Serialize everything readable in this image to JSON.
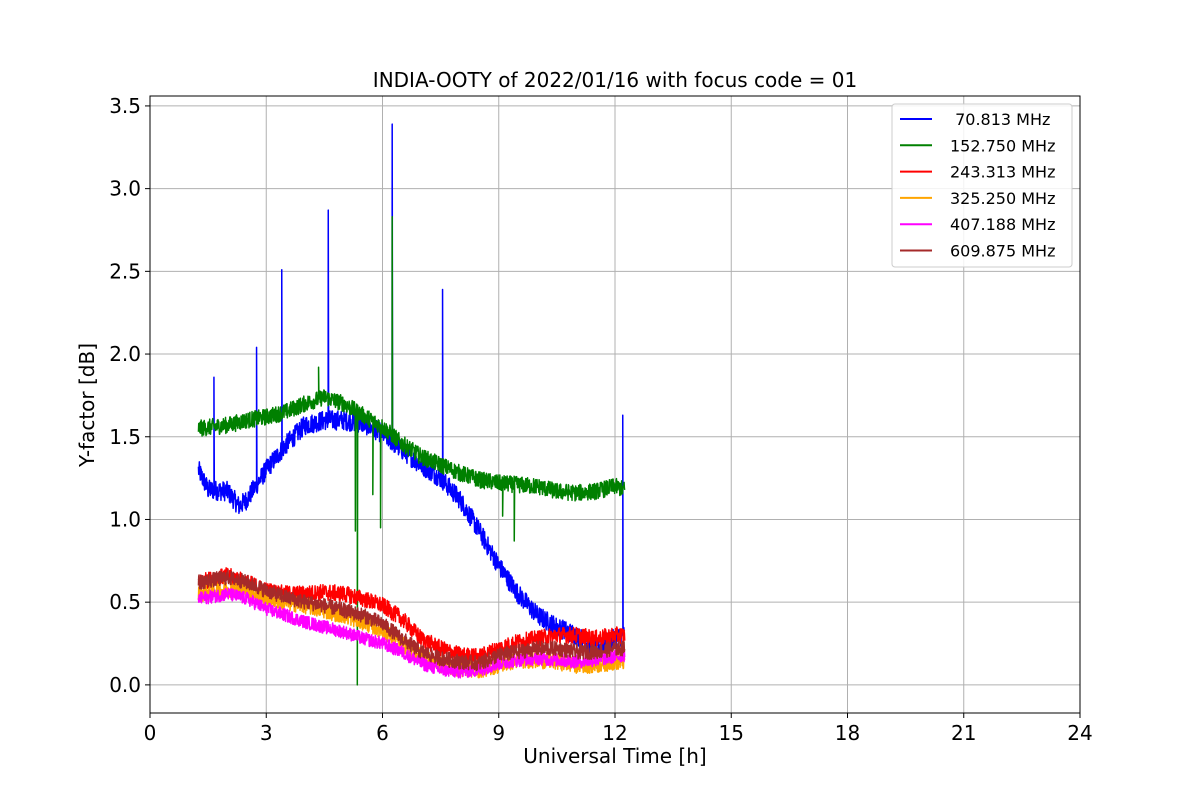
{
  "chart_data": {
    "type": "line",
    "title": "INDIA-OOTY of 2022/01/16 with focus code = 01",
    "xlabel": "Universal Time [h]",
    "ylabel": "Y-factor [dB]",
    "xlim": [
      0,
      24
    ],
    "ylim": [
      -0.17,
      3.56
    ],
    "xticks": [
      0,
      3,
      6,
      9,
      12,
      15,
      18,
      21,
      24
    ],
    "xtick_labels": [
      "0",
      "3",
      "6",
      "9",
      "12",
      "15",
      "18",
      "21",
      "24"
    ],
    "yticks": [
      0.0,
      0.5,
      1.0,
      1.5,
      2.0,
      2.5,
      3.0,
      3.5
    ],
    "ytick_labels": [
      "0.0",
      "0.5",
      "1.0",
      "1.5",
      "2.0",
      "2.5",
      "3.0",
      "3.5"
    ],
    "grid": true,
    "legend_position": "top-right",
    "series": [
      {
        "name": " 70.813 MHz",
        "color": "#0000ff",
        "noise": 0.06,
        "points": [
          [
            1.25,
            1.3
          ],
          [
            1.5,
            1.18
          ],
          [
            2.0,
            1.17
          ],
          [
            2.3,
            1.08
          ],
          [
            2.5,
            1.12
          ],
          [
            3.0,
            1.3
          ],
          [
            3.5,
            1.45
          ],
          [
            4.0,
            1.57
          ],
          [
            4.5,
            1.6
          ],
          [
            5.0,
            1.6
          ],
          [
            5.5,
            1.58
          ],
          [
            6.0,
            1.52
          ],
          [
            6.5,
            1.42
          ],
          [
            7.0,
            1.33
          ],
          [
            7.5,
            1.25
          ],
          [
            8.0,
            1.12
          ],
          [
            8.5,
            0.93
          ],
          [
            9.0,
            0.72
          ],
          [
            9.5,
            0.55
          ],
          [
            10.0,
            0.42
          ],
          [
            10.5,
            0.35
          ],
          [
            11.0,
            0.3
          ],
          [
            11.5,
            0.22
          ],
          [
            12.0,
            0.28
          ],
          [
            12.25,
            0.3
          ]
        ],
        "spikes": [
          [
            1.65,
            1.86
          ],
          [
            2.75,
            2.04
          ],
          [
            3.4,
            2.51
          ],
          [
            4.6,
            2.87
          ],
          [
            6.25,
            3.39
          ],
          [
            7.55,
            2.39
          ],
          [
            12.2,
            1.63
          ]
        ]
      },
      {
        "name": "152.750 MHz",
        "color": "#008000",
        "noise": 0.05,
        "points": [
          [
            1.25,
            1.55
          ],
          [
            2.0,
            1.57
          ],
          [
            2.5,
            1.6
          ],
          [
            3.0,
            1.62
          ],
          [
            3.5,
            1.65
          ],
          [
            4.0,
            1.7
          ],
          [
            4.5,
            1.74
          ],
          [
            5.0,
            1.7
          ],
          [
            5.5,
            1.63
          ],
          [
            6.0,
            1.56
          ],
          [
            6.5,
            1.46
          ],
          [
            7.0,
            1.38
          ],
          [
            7.5,
            1.33
          ],
          [
            8.0,
            1.28
          ],
          [
            8.5,
            1.24
          ],
          [
            9.0,
            1.22
          ],
          [
            9.5,
            1.21
          ],
          [
            10.0,
            1.2
          ],
          [
            10.5,
            1.17
          ],
          [
            11.0,
            1.16
          ],
          [
            11.5,
            1.17
          ],
          [
            12.0,
            1.2
          ],
          [
            12.25,
            1.18
          ]
        ],
        "spikes": [
          [
            4.35,
            1.92
          ],
          [
            6.25,
            2.83
          ]
        ],
        "dips": [
          [
            5.3,
            0.93
          ],
          [
            5.35,
            0.0
          ],
          [
            5.75,
            1.15
          ],
          [
            5.95,
            0.95
          ],
          [
            9.4,
            0.87
          ],
          [
            9.1,
            1.02
          ]
        ]
      },
      {
        "name": "243.313 MHz",
        "color": "#ff0000",
        "noise": 0.05,
        "points": [
          [
            1.25,
            0.62
          ],
          [
            2.0,
            0.66
          ],
          [
            2.5,
            0.62
          ],
          [
            3.0,
            0.57
          ],
          [
            3.5,
            0.55
          ],
          [
            4.0,
            0.55
          ],
          [
            4.5,
            0.56
          ],
          [
            5.0,
            0.55
          ],
          [
            5.5,
            0.52
          ],
          [
            6.0,
            0.48
          ],
          [
            6.5,
            0.4
          ],
          [
            7.0,
            0.28
          ],
          [
            7.5,
            0.22
          ],
          [
            8.0,
            0.18
          ],
          [
            8.5,
            0.17
          ],
          [
            9.0,
            0.22
          ],
          [
            9.5,
            0.26
          ],
          [
            10.0,
            0.28
          ],
          [
            10.5,
            0.3
          ],
          [
            11.0,
            0.3
          ],
          [
            11.5,
            0.28
          ],
          [
            12.0,
            0.3
          ],
          [
            12.25,
            0.3
          ]
        ]
      },
      {
        "name": "325.250 MHz",
        "color": "#ffa500",
        "noise": 0.05,
        "points": [
          [
            1.25,
            0.55
          ],
          [
            2.0,
            0.58
          ],
          [
            2.5,
            0.58
          ],
          [
            3.0,
            0.52
          ],
          [
            3.5,
            0.5
          ],
          [
            4.0,
            0.48
          ],
          [
            4.5,
            0.45
          ],
          [
            5.0,
            0.42
          ],
          [
            5.5,
            0.38
          ],
          [
            6.0,
            0.33
          ],
          [
            6.5,
            0.25
          ],
          [
            7.0,
            0.17
          ],
          [
            7.5,
            0.12
          ],
          [
            8.0,
            0.1
          ],
          [
            8.5,
            0.09
          ],
          [
            9.0,
            0.12
          ],
          [
            9.5,
            0.15
          ],
          [
            10.0,
            0.15
          ],
          [
            10.5,
            0.14
          ],
          [
            11.0,
            0.12
          ],
          [
            11.5,
            0.12
          ],
          [
            12.0,
            0.14
          ],
          [
            12.25,
            0.14
          ]
        ]
      },
      {
        "name": "407.188 MHz",
        "color": "#ff00ff",
        "noise": 0.04,
        "points": [
          [
            1.25,
            0.52
          ],
          [
            2.0,
            0.55
          ],
          [
            2.5,
            0.52
          ],
          [
            3.0,
            0.46
          ],
          [
            3.5,
            0.42
          ],
          [
            4.0,
            0.38
          ],
          [
            4.5,
            0.35
          ],
          [
            5.0,
            0.32
          ],
          [
            5.5,
            0.28
          ],
          [
            6.0,
            0.25
          ],
          [
            6.5,
            0.2
          ],
          [
            7.0,
            0.13
          ],
          [
            7.5,
            0.09
          ],
          [
            8.0,
            0.08
          ],
          [
            8.5,
            0.09
          ],
          [
            9.0,
            0.13
          ],
          [
            9.5,
            0.15
          ],
          [
            10.0,
            0.16
          ],
          [
            10.5,
            0.15
          ],
          [
            11.0,
            0.14
          ],
          [
            11.5,
            0.15
          ],
          [
            12.0,
            0.17
          ],
          [
            12.25,
            0.18
          ]
        ]
      },
      {
        "name": "609.875 MHz",
        "color": "#a52a2a",
        "noise": 0.045,
        "points": [
          [
            1.25,
            0.62
          ],
          [
            2.0,
            0.65
          ],
          [
            2.5,
            0.62
          ],
          [
            3.0,
            0.57
          ],
          [
            3.5,
            0.53
          ],
          [
            4.0,
            0.5
          ],
          [
            4.5,
            0.48
          ],
          [
            5.0,
            0.45
          ],
          [
            5.5,
            0.42
          ],
          [
            6.0,
            0.37
          ],
          [
            6.5,
            0.28
          ],
          [
            7.0,
            0.2
          ],
          [
            7.5,
            0.16
          ],
          [
            8.0,
            0.14
          ],
          [
            8.5,
            0.13
          ],
          [
            9.0,
            0.18
          ],
          [
            9.5,
            0.2
          ],
          [
            10.0,
            0.22
          ],
          [
            10.5,
            0.22
          ],
          [
            11.0,
            0.2
          ],
          [
            11.5,
            0.2
          ],
          [
            12.0,
            0.22
          ],
          [
            12.25,
            0.22
          ]
        ]
      }
    ]
  }
}
